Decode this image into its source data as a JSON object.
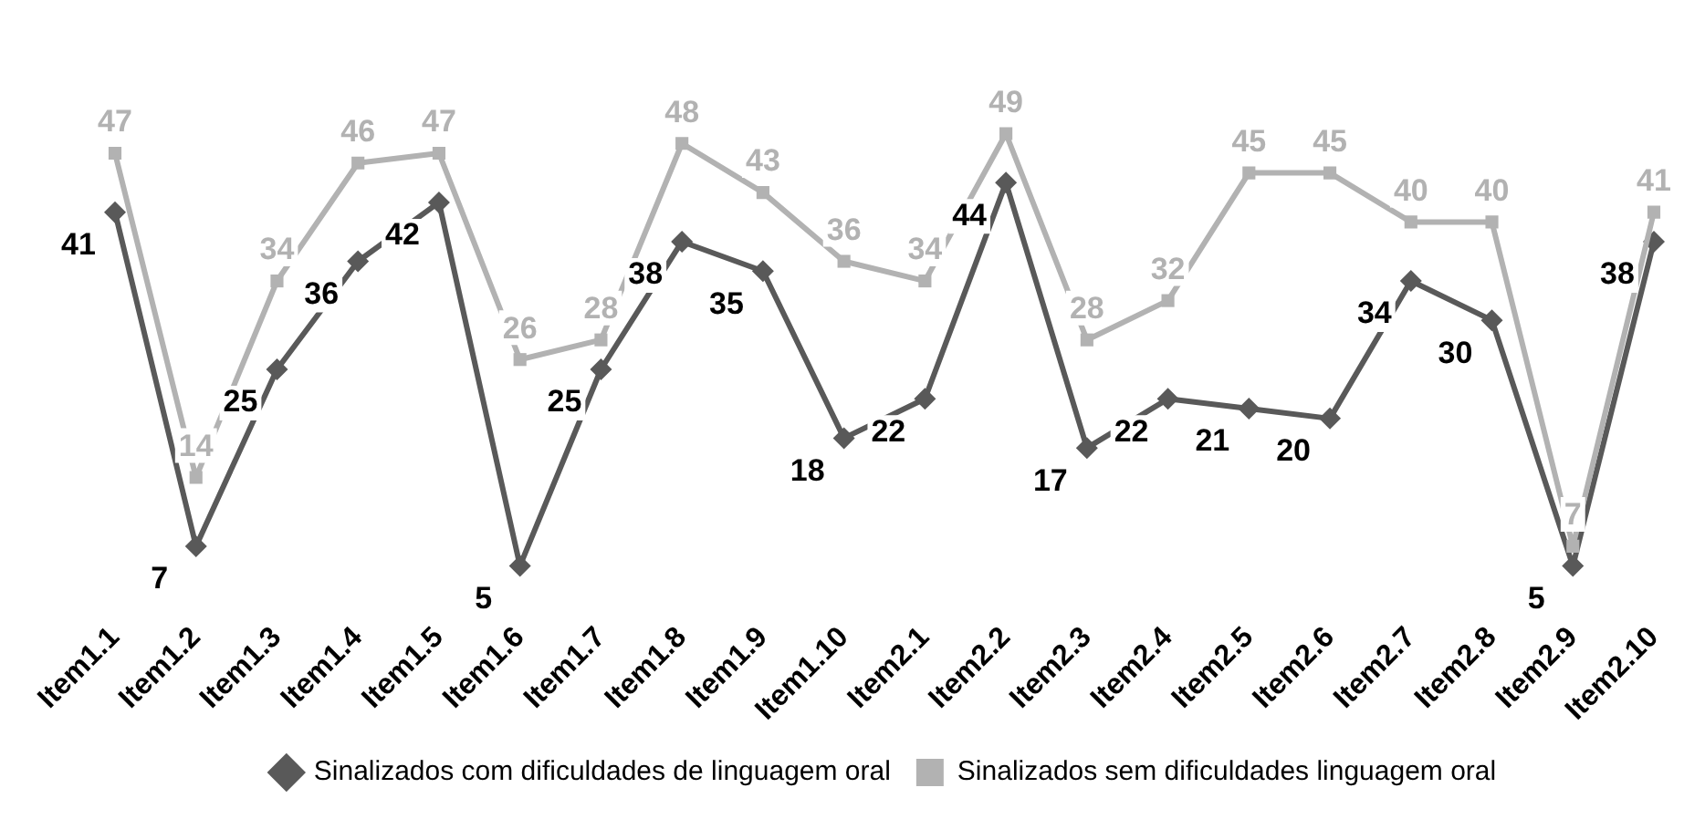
{
  "chart_data": {
    "type": "line",
    "categories": [
      "Item1.1",
      "Item1.2",
      "Item1.3",
      "Item1.4",
      "Item1.5",
      "Item1.6",
      "Item1.7",
      "Item1.8",
      "Item1.9",
      "Item1.10",
      "Item2.1",
      "Item2.2",
      "Item2.3",
      "Item2.4",
      "Item2.5",
      "Item2.6",
      "Item2.7",
      "Item2.8",
      "Item2.9",
      "Item2.10"
    ],
    "series": [
      {
        "name": "Sinalizados com dificuldades de linguagem oral",
        "color": "#595959",
        "marker": "diamond",
        "values": [
          41,
          7,
          25,
          36,
          42,
          5,
          25,
          38,
          35,
          18,
          22,
          44,
          17,
          22,
          21,
          20,
          34,
          30,
          5,
          38
        ]
      },
      {
        "name": "Sinalizados sem dificuldades linguagem oral",
        "color": "#b2b2b2",
        "marker": "square",
        "values": [
          47,
          14,
          34,
          46,
          47,
          26,
          28,
          48,
          43,
          36,
          34,
          49,
          28,
          32,
          45,
          45,
          40,
          40,
          7,
          41
        ]
      }
    ],
    "data_labels": true,
    "legend": "bottom",
    "grid": false,
    "tick_labels": "x",
    "line_style": "solid"
  }
}
